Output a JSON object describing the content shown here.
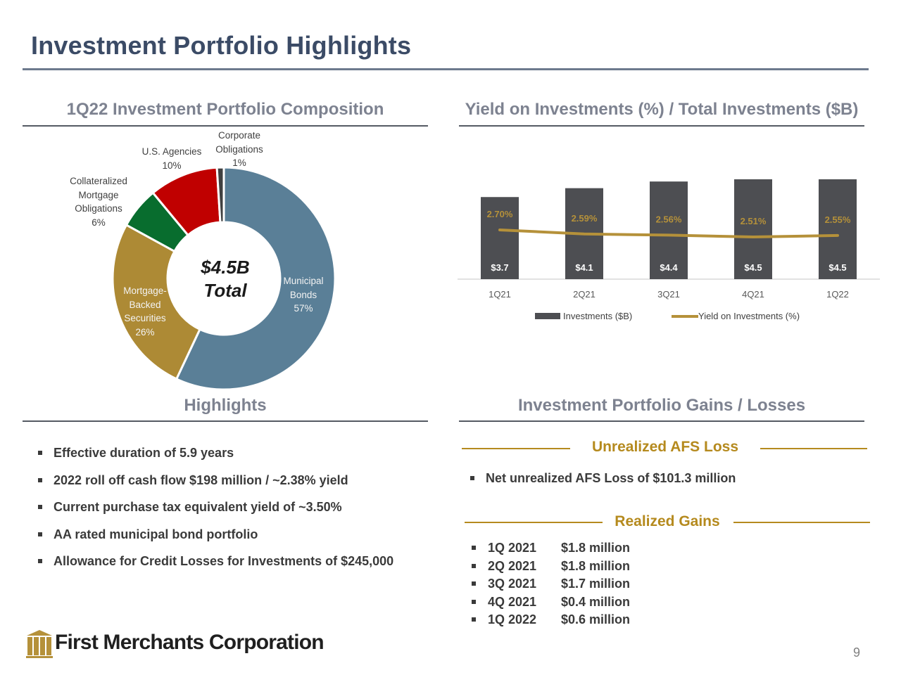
{
  "page": {
    "title": "Investment Portfolio Highlights",
    "page_number": "9"
  },
  "composition": {
    "title": "1Q22 Investment Portfolio Composition",
    "total_line1": "$4.5B",
    "total_line2": "Total",
    "labels": {
      "corporate": [
        "Corporate",
        "Obligations",
        "1%"
      ],
      "agencies": [
        "U.S. Agencies",
        "10%"
      ],
      "cmo": [
        "Collateralized",
        "Mortgage",
        "Obligations",
        "6%"
      ],
      "mbs": [
        "Mortgage-",
        "Backed",
        "Securities",
        "26%"
      ],
      "municipal": [
        "Municipal",
        "Bonds",
        "57%"
      ]
    }
  },
  "yield_chart": {
    "title": "Yield on Investments (%) / Total Investments ($B)",
    "legend_investments": "Investments ($B)",
    "legend_yield": "Yield on Investments (%)"
  },
  "chart_data": [
    {
      "type": "pie",
      "title": "1Q22 Investment Portfolio Composition",
      "center_label": "$4.5B Total",
      "categories": [
        "Municipal Bonds",
        "Mortgage-Backed Securities",
        "Collateralized Mortgage Obligations",
        "U.S. Agencies",
        "Corporate Obligations"
      ],
      "values": [
        57,
        26,
        6,
        10,
        1
      ],
      "colors": [
        "#5a7f97",
        "#ad8a35",
        "#086d2e",
        "#c00000",
        "#404040"
      ]
    },
    {
      "type": "bar",
      "title": "Yield on Investments (%) / Total Investments ($B)",
      "categories": [
        "1Q21",
        "2Q21",
        "3Q21",
        "4Q21",
        "1Q22"
      ],
      "series": [
        {
          "name": "Investments ($B)",
          "values": [
            3.7,
            4.1,
            4.4,
            4.5,
            4.5
          ],
          "labels": [
            "$3.7",
            "$4.1",
            "$4.4",
            "$4.5",
            "$4.5"
          ],
          "color": "#4d4e52",
          "kind": "bar"
        },
        {
          "name": "Yield on Investments (%)",
          "values": [
            2.7,
            2.59,
            2.56,
            2.51,
            2.55
          ],
          "labels": [
            "2.70%",
            "2.59%",
            "2.56%",
            "2.51%",
            "2.55%"
          ],
          "color": "#b5913a",
          "kind": "line"
        }
      ],
      "legend": "bottom"
    }
  ],
  "highlights": {
    "title": "Highlights",
    "items": [
      "Effective duration of 5.9 years",
      "2022 roll off cash flow $198 million / ~2.38% yield",
      "Current purchase tax equivalent yield of ~3.50%",
      "AA rated municipal bond portfolio",
      "Allowance for Credit Losses for Investments of $245,000"
    ]
  },
  "gains_losses": {
    "title": "Investment Portfolio Gains / Losses",
    "unrealized_heading": "Unrealized AFS Loss",
    "unrealized_items": [
      "Net unrealized AFS Loss of $101.3 million"
    ],
    "realized_heading": "Realized Gains",
    "realized_items": [
      {
        "quarter": "1Q 2021",
        "amount": "$1.8 million"
      },
      {
        "quarter": "2Q 2021",
        "amount": "$1.8 million"
      },
      {
        "quarter": "3Q 2021",
        "amount": "$1.7 million"
      },
      {
        "quarter": "4Q 2021",
        "amount": "$0.4 million"
      },
      {
        "quarter": "1Q 2022",
        "amount": "$0.6 million"
      }
    ]
  },
  "logo": {
    "name": "First Merchants Corporation",
    "icon": "columns-building-icon",
    "color": "#b5913a"
  }
}
